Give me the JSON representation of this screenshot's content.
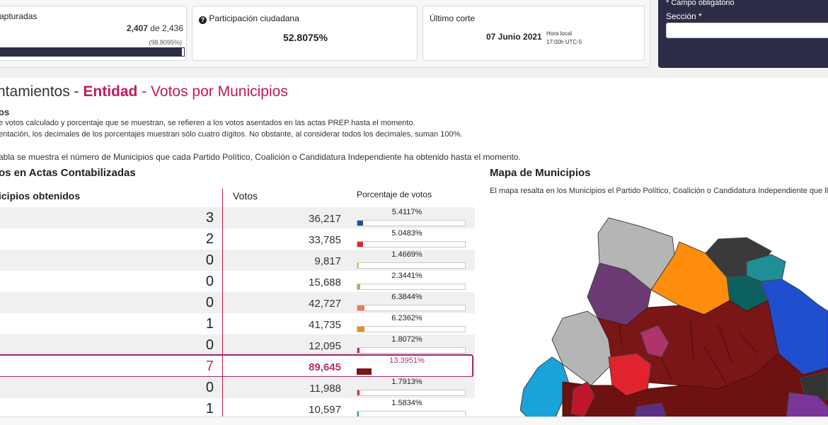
{
  "top": {
    "card1": {
      "title": "apturadas",
      "count": "2,407",
      "sep": "de",
      "total": "2,436",
      "pct_text": "(98.8095%)",
      "progress": 0.988
    },
    "card2": {
      "title": "Participación ciudadana",
      "value": "52.8075%"
    },
    "card3": {
      "title": "Último corte",
      "date": "07 Junio 2021",
      "time_label": "Hora local",
      "time_value": "17:00h UTC-5"
    },
    "panel": {
      "required_note": "* Campo obligatorio",
      "field_label": "Sección *"
    }
  },
  "heading": {
    "prefix": "ntamientos - ",
    "entity": "Entidad",
    "rest": " - Votos por Municipios"
  },
  "notes": {
    "title": "os",
    "line1": "e votos calculado y porcentaje que se muestran, se refieren a los votos asentados en las actas PREP hasta el momento.",
    "line2": "entación, los decimales de los porcentajes muestran sólo cuatro dígitos. No obstante, al considerar todos los decimales, suman 100%.",
    "line3": "abla se muestra el número de Municipios que cada Partido Político, Coalición o Candidatura Independiente ha obtenido hasta el momento."
  },
  "table": {
    "section_title": "os en Actas Contabilizadas",
    "col_municipios": "icipios obtenidos",
    "col_votos": "Votos",
    "col_pct": "Porcentaje de votos",
    "rows": [
      {
        "municipios": "3",
        "votos": "36,217",
        "pct": "5.4117%",
        "fraction": 0.054117,
        "color": "#1c4fa3"
      },
      {
        "municipios": "2",
        "votos": "33,785",
        "pct": "5.0483%",
        "fraction": 0.050483,
        "color": "#d9292f"
      },
      {
        "municipios": "0",
        "votos": "9,817",
        "pct": "1.4669%",
        "fraction": 0.014669,
        "color": "#e8c12c"
      },
      {
        "municipios": "0",
        "votos": "15,688",
        "pct": "2.3441%",
        "fraction": 0.023441,
        "color": "#9cbf5b"
      },
      {
        "municipios": "0",
        "votos": "42,727",
        "pct": "6.3844%",
        "fraction": 0.063844,
        "color": "#f07855"
      },
      {
        "municipios": "1",
        "votos": "41,735",
        "pct": "6.2362%",
        "fraction": 0.062362,
        "color": "#f08c1c"
      },
      {
        "municipios": "0",
        "votos": "12,095",
        "pct": "1.8072%",
        "fraction": 0.018072,
        "color": "#d9292f"
      },
      {
        "municipios": "7",
        "votos": "89,645",
        "pct": "13.3951%",
        "fraction": 0.133951,
        "color": "#7a1616",
        "highlight": true
      },
      {
        "municipios": "0",
        "votos": "11,988",
        "pct": "1.7913%",
        "fraction": 0.017913,
        "color": "#d9292f"
      },
      {
        "municipios": "1",
        "votos": "10,597",
        "pct": "1.5834%",
        "fraction": 0.015834,
        "color": "#22a3b8"
      }
    ]
  },
  "map": {
    "title": "Mapa de Municipios",
    "desc": "El mapa resalta en los Municipios el Partido Político, Coalición o Candidatura Independiente que lleva v"
  }
}
